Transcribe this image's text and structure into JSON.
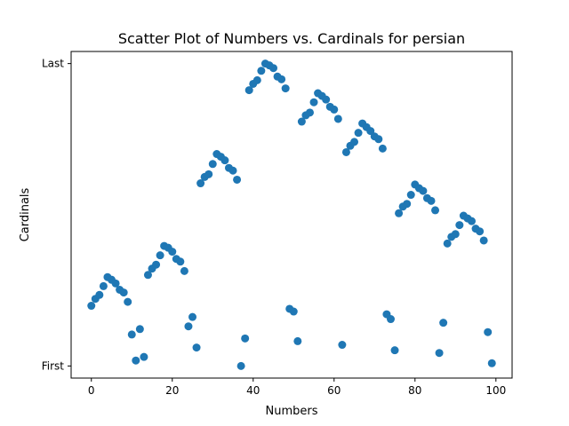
{
  "chart_data": {
    "type": "scatter",
    "title": "Scatter Plot of Numbers vs. Cardinals for persian",
    "xlabel": "Numbers",
    "ylabel": "Cardinals",
    "xlim": [
      -5,
      104
    ],
    "ylim": [
      -0.04,
      1.04
    ],
    "xticks": [
      0,
      20,
      40,
      60,
      80,
      100
    ],
    "yticks": [
      {
        "value": 0,
        "label": "First"
      },
      {
        "value": 1,
        "label": "Last"
      }
    ],
    "marker_color": "#1f77b4",
    "grid": false,
    "legend": "none",
    "points": [
      [
        0,
        0.199
      ],
      [
        1,
        0.222
      ],
      [
        2,
        0.235
      ],
      [
        3,
        0.264
      ],
      [
        4,
        0.294
      ],
      [
        5,
        0.285
      ],
      [
        6,
        0.273
      ],
      [
        7,
        0.252
      ],
      [
        8,
        0.243
      ],
      [
        9,
        0.212
      ],
      [
        10,
        0.104
      ],
      [
        11,
        0.018
      ],
      [
        12,
        0.122
      ],
      [
        13,
        0.03
      ],
      [
        14,
        0.301
      ],
      [
        15,
        0.322
      ],
      [
        16,
        0.335
      ],
      [
        17,
        0.366
      ],
      [
        18,
        0.397
      ],
      [
        19,
        0.391
      ],
      [
        20,
        0.378
      ],
      [
        21,
        0.354
      ],
      [
        22,
        0.345
      ],
      [
        23,
        0.314
      ],
      [
        24,
        0.131
      ],
      [
        25,
        0.162
      ],
      [
        26,
        0.061
      ],
      [
        27,
        0.604
      ],
      [
        28,
        0.625
      ],
      [
        29,
        0.634
      ],
      [
        30,
        0.668
      ],
      [
        31,
        0.701
      ],
      [
        32,
        0.692
      ],
      [
        33,
        0.68
      ],
      [
        34,
        0.655
      ],
      [
        35,
        0.646
      ],
      [
        36,
        0.616
      ],
      [
        37,
        0.0
      ],
      [
        38,
        0.091
      ],
      [
        39,
        0.912
      ],
      [
        40,
        0.933
      ],
      [
        41,
        0.945
      ],
      [
        42,
        0.976
      ],
      [
        43,
        1.0
      ],
      [
        44,
        0.994
      ],
      [
        45,
        0.985
      ],
      [
        46,
        0.957
      ],
      [
        47,
        0.948
      ],
      [
        48,
        0.918
      ],
      [
        49,
        0.189
      ],
      [
        50,
        0.18
      ],
      [
        51,
        0.082
      ],
      [
        52,
        0.808
      ],
      [
        53,
        0.829
      ],
      [
        54,
        0.838
      ],
      [
        55,
        0.872
      ],
      [
        56,
        0.902
      ],
      [
        57,
        0.893
      ],
      [
        58,
        0.881
      ],
      [
        59,
        0.857
      ],
      [
        60,
        0.848
      ],
      [
        61,
        0.817
      ],
      [
        62,
        0.07
      ],
      [
        63,
        0.707
      ],
      [
        64,
        0.728
      ],
      [
        65,
        0.741
      ],
      [
        66,
        0.771
      ],
      [
        67,
        0.802
      ],
      [
        68,
        0.79
      ],
      [
        69,
        0.777
      ],
      [
        70,
        0.759
      ],
      [
        71,
        0.75
      ],
      [
        72,
        0.719
      ],
      [
        73,
        0.171
      ],
      [
        74,
        0.155
      ],
      [
        75,
        0.052
      ],
      [
        76,
        0.505
      ],
      [
        77,
        0.527
      ],
      [
        78,
        0.536
      ],
      [
        79,
        0.566
      ],
      [
        80,
        0.6
      ],
      [
        81,
        0.588
      ],
      [
        82,
        0.579
      ],
      [
        83,
        0.555
      ],
      [
        84,
        0.546
      ],
      [
        85,
        0.515
      ],
      [
        86,
        0.043
      ],
      [
        87,
        0.143
      ],
      [
        88,
        0.405
      ],
      [
        89,
        0.427
      ],
      [
        90,
        0.436
      ],
      [
        91,
        0.466
      ],
      [
        92,
        0.497
      ],
      [
        93,
        0.488
      ],
      [
        94,
        0.479
      ],
      [
        95,
        0.454
      ],
      [
        96,
        0.445
      ],
      [
        97,
        0.415
      ],
      [
        98,
        0.112
      ],
      [
        99,
        0.009
      ]
    ]
  }
}
